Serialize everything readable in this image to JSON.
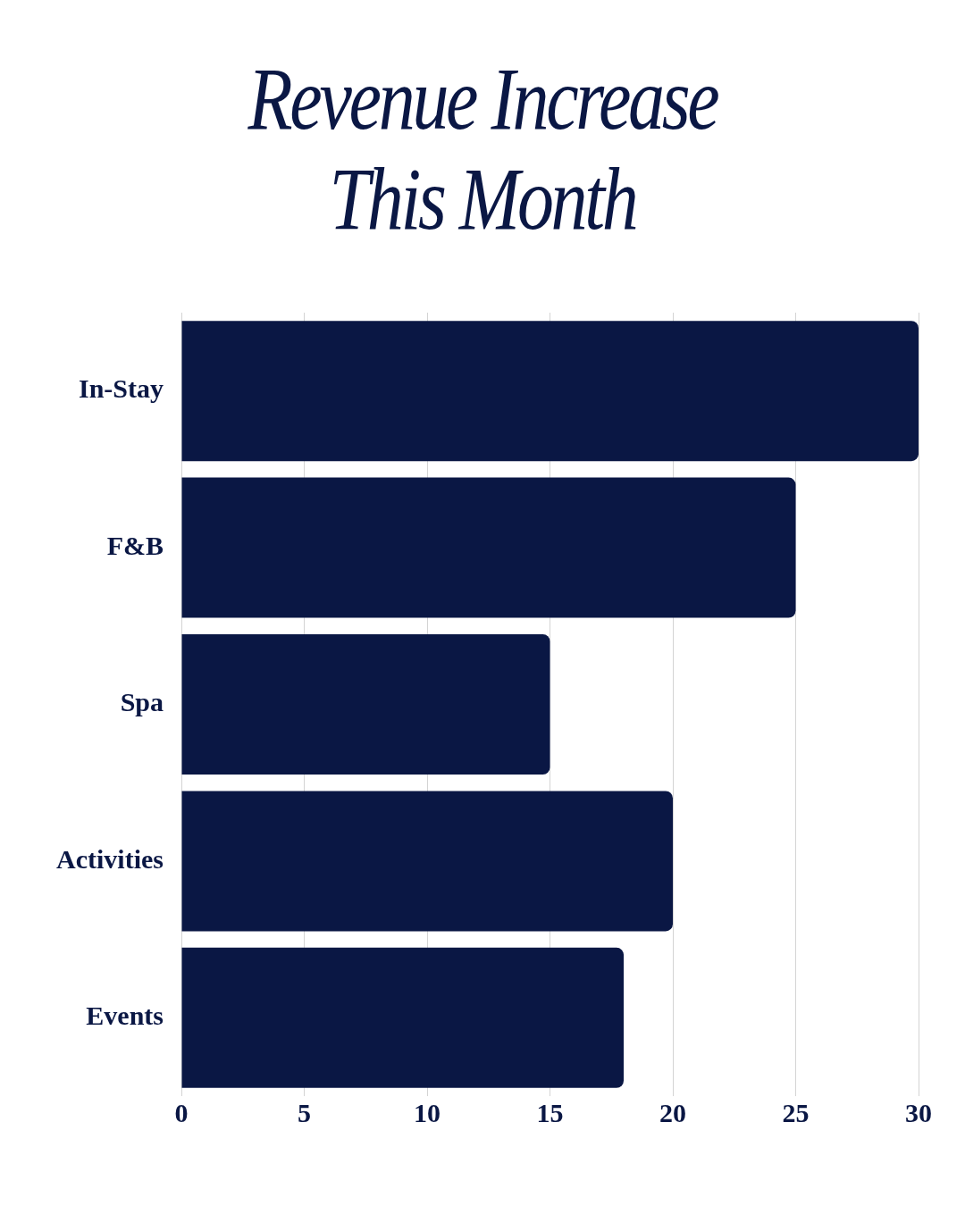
{
  "chart_data": {
    "type": "bar",
    "orientation": "horizontal",
    "title": "Revenue Increase This Month",
    "categories": [
      "In-Stay",
      "F&B",
      "Spa",
      "Activities",
      "Events"
    ],
    "values": [
      30,
      25,
      15,
      20,
      18
    ],
    "color": "#0a1744",
    "xlim": [
      0,
      30
    ],
    "xticks": [
      0,
      5,
      10,
      15,
      20,
      25,
      30
    ],
    "grid": "x"
  }
}
